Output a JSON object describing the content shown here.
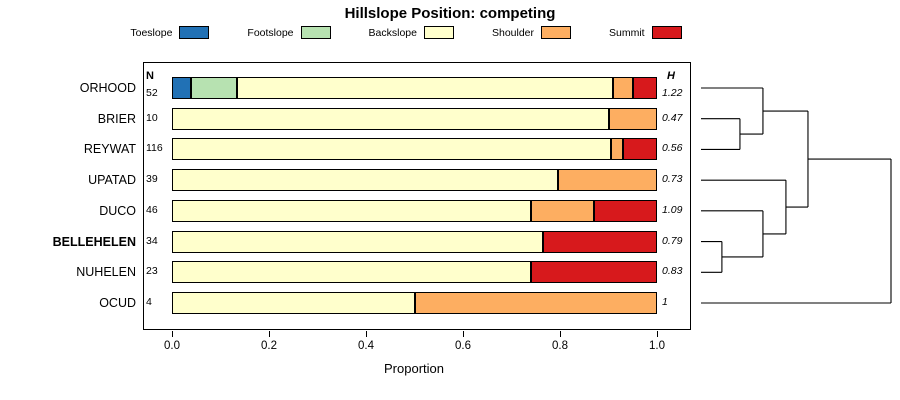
{
  "title": "Hillslope Position: competing",
  "xlabel": "Proportion",
  "columns": {
    "n_header": "N",
    "h_header": "H"
  },
  "x_ticks": [
    "0.0",
    "0.2",
    "0.4",
    "0.6",
    "0.8",
    "1.0"
  ],
  "legend": [
    {
      "label": "Toeslope",
      "color": "#2171B5"
    },
    {
      "label": "Footslope",
      "color": "#B7E2B1"
    },
    {
      "label": "Backslope",
      "color": "#FFFFCC"
    },
    {
      "label": "Shoulder",
      "color": "#FDAE61"
    },
    {
      "label": "Summit",
      "color": "#D7191C"
    }
  ],
  "chart_data": {
    "type": "bar",
    "orientation": "horizontal",
    "stacked": true,
    "title": "Hillslope Position: competing",
    "xlabel": "Proportion",
    "xlim": [
      0,
      1
    ],
    "categories": [
      "ORHOOD",
      "BRIER",
      "REYWAT",
      "UPATAD",
      "DUCO",
      "BELLEHELEN",
      "NUHELEN",
      "OCUD"
    ],
    "bold_category": "BELLEHELEN",
    "n_values": [
      52,
      10,
      116,
      39,
      46,
      34,
      23,
      4
    ],
    "h_values": [
      "1.22",
      "0.47",
      "0.56",
      "0.73",
      "1.09",
      "0.79",
      "0.83",
      "1"
    ],
    "series": [
      {
        "name": "Toeslope",
        "color": "#2171B5",
        "values": [
          0.04,
          0,
          0,
          0,
          0,
          0,
          0,
          0
        ]
      },
      {
        "name": "Footslope",
        "color": "#B7E2B1",
        "values": [
          0.095,
          0,
          0,
          0,
          0,
          0,
          0,
          0
        ]
      },
      {
        "name": "Backslope",
        "color": "#FFFFCC",
        "values": [
          0.775,
          0.9,
          0.905,
          0.795,
          0.74,
          0.765,
          0.74,
          0.5
        ]
      },
      {
        "name": "Shoulder",
        "color": "#FDAE61",
        "values": [
          0.04,
          0.1,
          0.025,
          0.205,
          0.13,
          0,
          0,
          0.5
        ]
      },
      {
        "name": "Summit",
        "color": "#D7191C",
        "values": [
          0.05,
          0,
          0.07,
          0,
          0.13,
          0.235,
          0.26,
          0
        ]
      }
    ],
    "dendrogram": {
      "merges": [
        {
          "a": "L1",
          "b": "L2",
          "h": 0.205
        },
        {
          "a": "L0",
          "b": "M0",
          "h": 0.326
        },
        {
          "a": "L5",
          "b": "L6",
          "h": 0.11
        },
        {
          "a": "L4",
          "b": "M2",
          "h": 0.326
        },
        {
          "a": "L3",
          "b": "M3",
          "h": 0.447
        },
        {
          "a": "M1",
          "b": "M4",
          "h": 0.563
        },
        {
          "a": "M5",
          "b": "L7",
          "h": 1.0
        }
      ]
    }
  }
}
